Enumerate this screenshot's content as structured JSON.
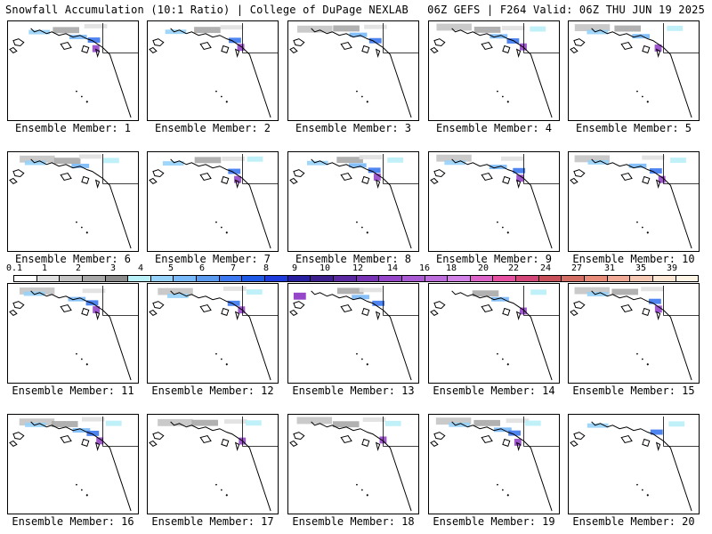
{
  "header": {
    "left": "Snowfall Accumulation (10:1 Ratio) | College of DuPage NEXLAB",
    "right": "06Z GEFS | F264 Valid: 06Z THU JUN 19 2025"
  },
  "colorbar": {
    "labels": [
      "0.1",
      "1",
      "2",
      "3",
      "4",
      "5",
      "6",
      "7",
      "8",
      "9",
      "10",
      "12",
      "14",
      "16",
      "18",
      "20",
      "22",
      "24",
      "27",
      "31",
      "35",
      "39"
    ],
    "colors": [
      "#ffffff",
      "#e0e0e0",
      "#c4c4c4",
      "#a8a8a8",
      "#8c8c8c",
      "#b9f0f8",
      "#96d2fa",
      "#78b9fa",
      "#5a9bf0",
      "#3c78f0",
      "#1e5ae6",
      "#1e3cdc",
      "#281ea0",
      "#3c1e8c",
      "#5a28a0",
      "#7832b4",
      "#9646c8",
      "#aa5ad2",
      "#be6edc",
      "#d282e6",
      "#dc64c8",
      "#e650a0",
      "#d24678",
      "#c8505a",
      "#d26e64",
      "#e68c78",
      "#f0aa96",
      "#f5c8b4",
      "#fae6d2",
      "#fff5e6"
    ]
  },
  "panels": [
    {
      "label": "Ensemble Member: 1"
    },
    {
      "label": "Ensemble Member: 2"
    },
    {
      "label": "Ensemble Member: 3"
    },
    {
      "label": "Ensemble Member: 4"
    },
    {
      "label": "Ensemble Member: 5"
    },
    {
      "label": "Ensemble Member: 6"
    },
    {
      "label": "Ensemble Member: 7"
    },
    {
      "label": "Ensemble Member: 8"
    },
    {
      "label": "Ensemble Member: 9"
    },
    {
      "label": "Ensemble Member: 10"
    },
    {
      "label": "Ensemble Member: 11"
    },
    {
      "label": "Ensemble Member: 12"
    },
    {
      "label": "Ensemble Member: 13"
    },
    {
      "label": "Ensemble Member: 14"
    },
    {
      "label": "Ensemble Member: 15"
    },
    {
      "label": "Ensemble Member: 16"
    },
    {
      "label": "Ensemble Member: 17"
    },
    {
      "label": "Ensemble Member: 18"
    },
    {
      "label": "Ensemble Member: 19"
    },
    {
      "label": "Ensemble Member: 20"
    }
  ]
}
